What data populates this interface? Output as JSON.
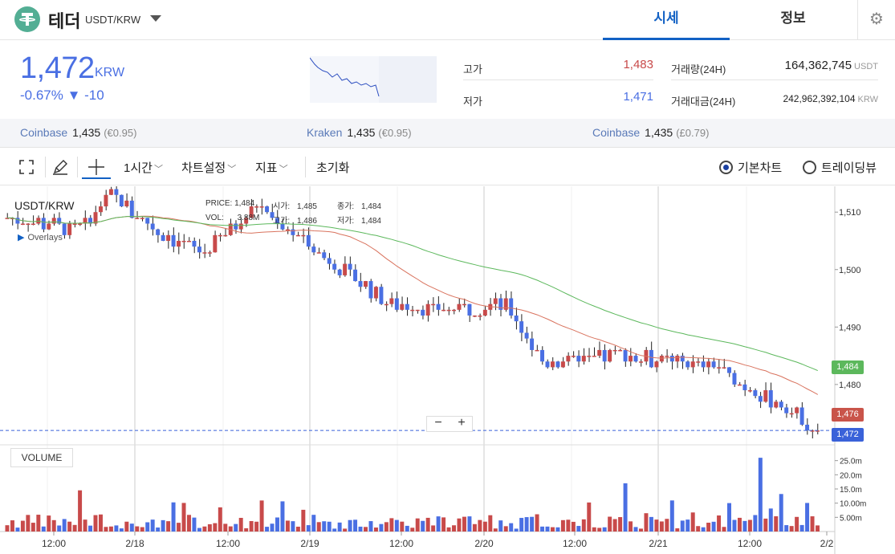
{
  "header": {
    "coin_name": "테더",
    "pair": "USDT/KRW",
    "tabs": [
      {
        "label": "시세",
        "active": true
      },
      {
        "label": "정보",
        "active": false
      }
    ]
  },
  "summary": {
    "price": "1,472",
    "currency": "KRW",
    "change": "-0.67% ▼ -10",
    "high_label": "고가",
    "high_value": "1,483",
    "low_label": "저가",
    "low_value": "1,471",
    "volume_label": "거래량(24H)",
    "volume_value": "164,362,745",
    "volume_unit": "USDT",
    "amount_label": "거래대금(24H)",
    "amount_value": "242,962,392,104",
    "amount_unit": "KRW",
    "colors": {
      "up": "#c84a4a",
      "down": "#4a6fe3"
    }
  },
  "exchanges": [
    {
      "name": "Coinbase",
      "price": "1,435",
      "diff": "(€0.95)"
    },
    {
      "name": "Kraken",
      "price": "1,435",
      "diff": "(€0.95)"
    },
    {
      "name": "Coinbase",
      "price": "1,435",
      "diff": "(£0.79)"
    }
  ],
  "toolbar": {
    "interval": "1시간",
    "chart_settings": "차트설정",
    "indicators": "지표",
    "reset": "초기화",
    "basic_chart": "기본차트",
    "tradingview": "트레이딩뷰",
    "icons": [
      "fullscreen-icon",
      "pencil-icon",
      "crosshair-icon",
      "chevron-down-icon",
      "radio-icon"
    ]
  },
  "chart": {
    "pair_label": "USDT/KRW",
    "overlays": "Overlays",
    "ohlc": {
      "price_label": "PRICE:",
      "price": "1,484",
      "vol_label": "VOL:",
      "vol": "3.88M",
      "open_label": "시가:",
      "open": "1,485",
      "high_label": "고가:",
      "high": "1,486",
      "close_label": "종가:",
      "close": "1,484",
      "low_label": "저가:",
      "low": "1,484"
    },
    "zoom_minus": "−",
    "zoom_plus": "+",
    "volume_label": "VOLUME",
    "tags": {
      "ma_long": "1,484",
      "ma_short": "1,476",
      "last": "1,472"
    }
  },
  "chart_data": {
    "type": "candlestick",
    "price_axis": {
      "ticks": [
        "1,510",
        "1,500",
        "1,490",
        "1,480"
      ],
      "range": [
        1469.5,
        1514.5
      ]
    },
    "volume_axis": {
      "ticks": [
        "25.0m",
        "20.0m",
        "15.0m",
        "10.00m",
        "5.00m"
      ],
      "range": [
        0,
        30
      ]
    },
    "x_axis": {
      "ticks": [
        "12:00",
        "2/18",
        "12:00",
        "2/19",
        "12:00",
        "2/20",
        "12:00",
        "2/21",
        "12:00",
        "2/2"
      ]
    },
    "last_price": 1472,
    "ma_long_last": 1484,
    "ma_short_last": 1476,
    "colors": {
      "up": "#c84a4a",
      "down": "#4a6fe3",
      "ma_long": "#5cb85c",
      "ma_short": "#d9735e"
    },
    "key_points": [
      [
        0,
        1509
      ],
      [
        14,
        1507
      ],
      [
        20,
        1513
      ],
      [
        28,
        1507
      ],
      [
        38,
        1503
      ],
      [
        48,
        1511
      ],
      [
        56,
        1506
      ],
      [
        66,
        1499
      ],
      [
        74,
        1494
      ],
      [
        86,
        1493
      ],
      [
        96,
        1494
      ],
      [
        103,
        1484
      ],
      [
        118,
        1485
      ],
      [
        127,
        1484
      ],
      [
        137,
        1483
      ],
      [
        141,
        1480
      ],
      [
        150,
        1476
      ],
      [
        156,
        1472
      ]
    ],
    "candle_count": 157
  }
}
